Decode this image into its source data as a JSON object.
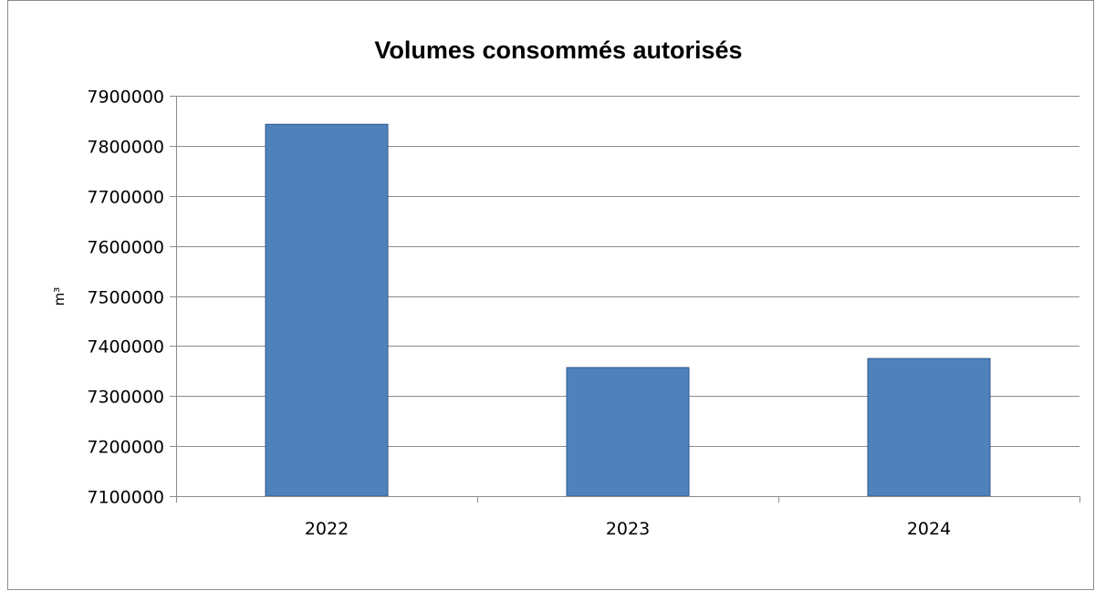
{
  "chart_data": {
    "type": "bar",
    "title": "Volumes consommés autorisés",
    "xlabel": "",
    "ylabel": "m³",
    "categories": [
      "2022",
      "2023",
      "2024"
    ],
    "values": [
      7843000,
      7357000,
      7375000
    ],
    "ylim": [
      7100000,
      7900000
    ],
    "yticks": [
      "7100000",
      "7200000",
      "7300000",
      "7400000",
      "7500000",
      "7600000",
      "7700000",
      "7800000",
      "7900000"
    ],
    "grid": true,
    "legend": "none",
    "colors": {
      "bar": "#4f81bd",
      "bar_border": "#2f5a8c",
      "grid": "#8c8c8c",
      "axis": "#8c8c8c"
    }
  }
}
